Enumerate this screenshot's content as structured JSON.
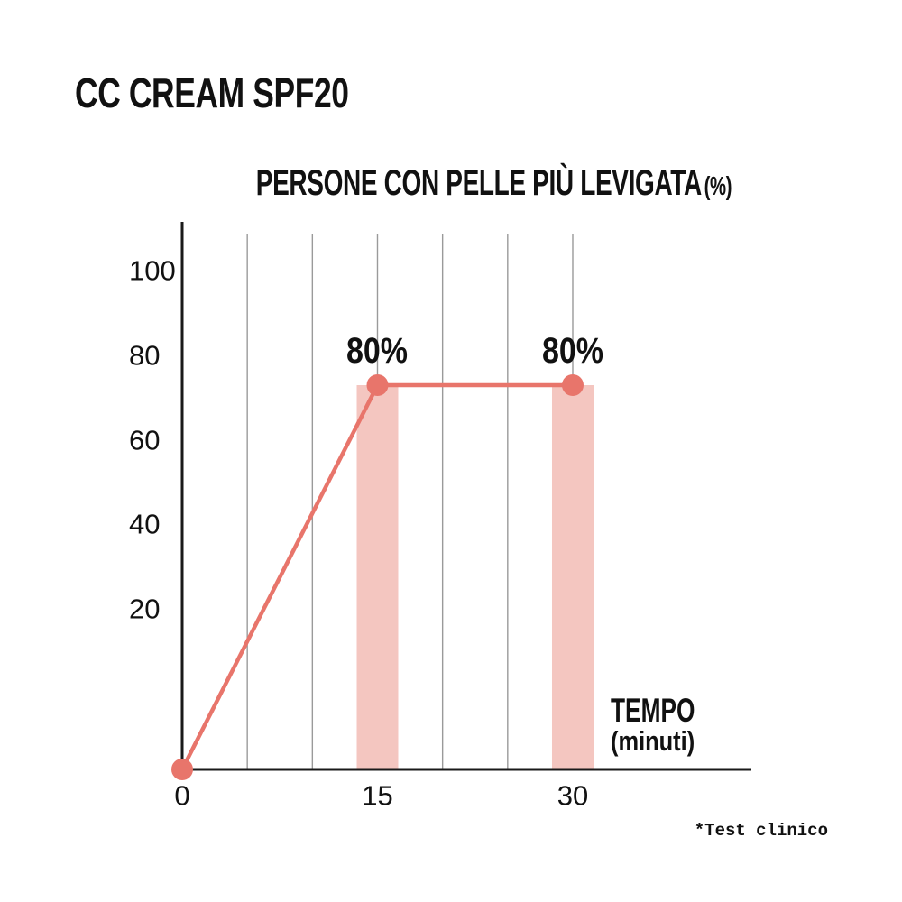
{
  "page_title": "CC CREAM SPF20",
  "footnote": "*Test clinico",
  "chart_data": {
    "type": "line",
    "title": "PERSONE CON PELLE PIÙ LEVIGATA",
    "title_suffix": "(%)",
    "xlabel": "TEMPO",
    "xlabel_sub": "(minuti)",
    "x": [
      0,
      15,
      30
    ],
    "series": [
      {
        "name": "persone con pelle più levigata (%)",
        "values": [
          0,
          80,
          80
        ]
      }
    ],
    "point_labels": [
      "",
      "80%",
      "80%"
    ],
    "x_ticks": [
      "0",
      "15",
      "30"
    ],
    "x_tick_values": [
      0,
      15,
      30
    ],
    "y_ticks": [
      "100",
      "80",
      "60",
      "40",
      "20"
    ],
    "y_tick_values": [
      100,
      80,
      60,
      40,
      20
    ],
    "gridlines_at_x": [
      5,
      10,
      15,
      20,
      25,
      30
    ],
    "highlight_bars": {
      "at_x": [
        15,
        30
      ],
      "top_value": 80
    },
    "xlim": [
      0,
      43
    ],
    "ylim": [
      0,
      113
    ],
    "grid": "vertical-only",
    "legend": "none",
    "colors": {
      "line": "#e8756b",
      "marker": "#e8756b",
      "bar_highlight": "#f4c6c0",
      "gridline": "#9a9a9a",
      "axis": "#1a1a1a",
      "text": "#111111"
    }
  }
}
